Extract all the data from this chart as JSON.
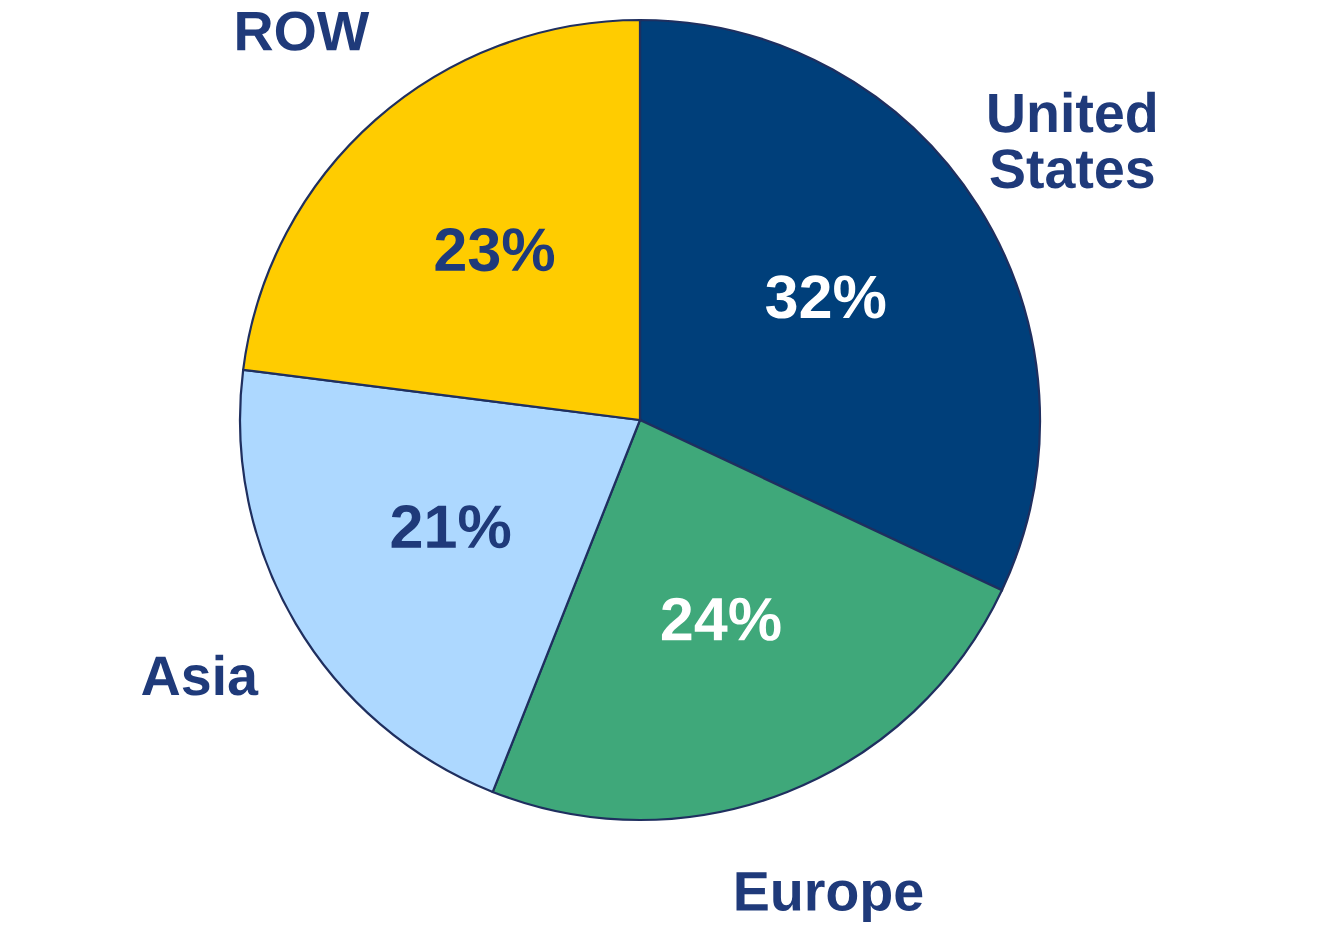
{
  "chart_data": {
    "type": "pie",
    "categories": [
      "United States",
      "Europe",
      "Asia",
      "ROW"
    ],
    "values": [
      32,
      24,
      21,
      23
    ],
    "colors": [
      "#003f7a",
      "#3fa87a",
      "#add8ff",
      "#ffcc00"
    ],
    "value_labels": [
      "32%",
      "24%",
      "21%",
      "23%"
    ]
  }
}
